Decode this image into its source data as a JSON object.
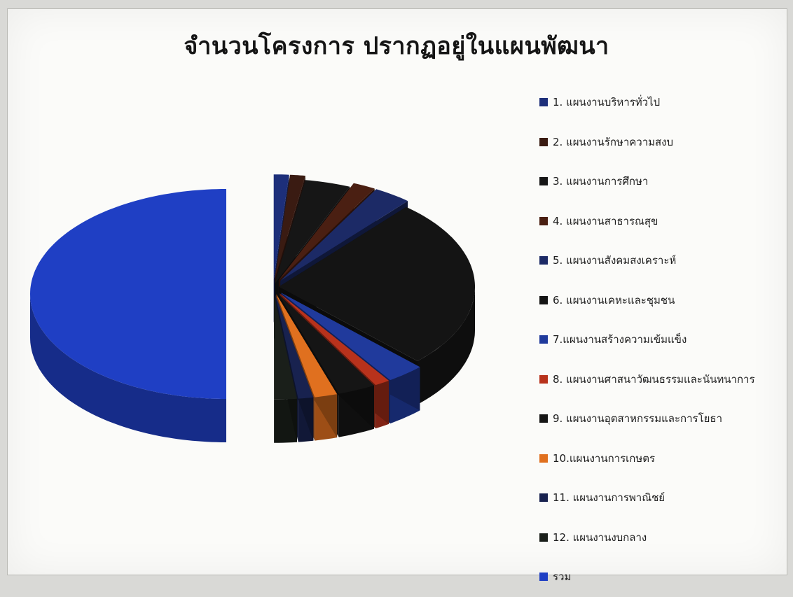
{
  "chart_data": {
    "type": "pie",
    "title": "จำนวนโครงการ ปรากฏอยู่ในแผนพัฒนา",
    "style": "3d-exploded",
    "legend_position": "right",
    "total_label": "รวม",
    "slices": [
      {
        "label": "1. แผนงานบริหารทั่วไป",
        "value": 2,
        "color": "#1d2f7a"
      },
      {
        "label": "2. แผนงานรักษาความสงบ",
        "value": 2,
        "color": "#3a1b12"
      },
      {
        "label": "3. แผนงานการศึกษา",
        "value": 6,
        "color": "#161616"
      },
      {
        "label": "4. แผนงานสาธารณสุข",
        "value": 3,
        "color": "#4a1f12"
      },
      {
        "label": "5. แผนงานสังคมสงเคราะห์",
        "value": 5,
        "color": "#1c2a66"
      },
      {
        "label": "6. แผนงานเคหะและชุมชน",
        "value": 42,
        "color": "#141414"
      },
      {
        "label": "7.แผนงานสร้างความเข้มแข็ง",
        "value": 5,
        "color": "#203a9c"
      },
      {
        "label": "8. แผนงานศาสนาวัฒนธรรมและนันทนาการ",
        "value": 2,
        "color": "#b8321c"
      },
      {
        "label": "9. แผนงานอุตสาหกรรมและการโยธา",
        "value": 5,
        "color": "#151515"
      },
      {
        "label": "10.แผนงานการเกษตร",
        "value": 3,
        "color": "#e0701f"
      },
      {
        "label": "11. แผนงานการพาณิชย์",
        "value": 2,
        "color": "#18224f"
      },
      {
        "label": "12. แผนงานงบกลาง",
        "value": 3,
        "color": "#1a1f1a"
      }
    ],
    "total": {
      "label": "รวม",
      "value": 80,
      "color": "#1f3fc4"
    }
  }
}
